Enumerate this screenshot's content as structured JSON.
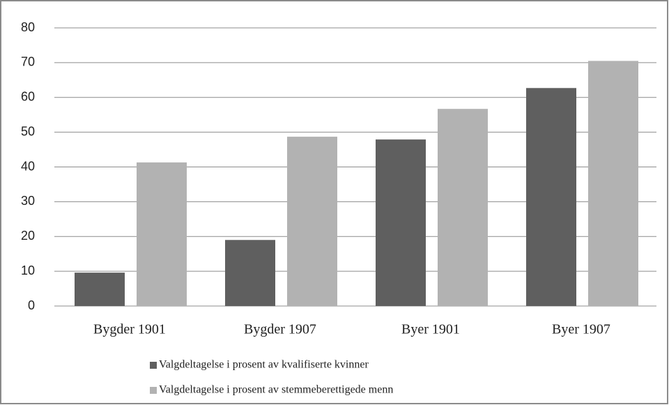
{
  "chart_data": {
    "type": "bar",
    "categories": [
      "Bygder 1901",
      "Bygder 1907",
      "Byer 1901",
      "Byer 1907"
    ],
    "series": [
      {
        "name": "Valgdeltagelse i prosent av kvalifiserte kvinner",
        "color": "#5f5f5f",
        "values": [
          9.6,
          19.0,
          47.9,
          62.7
        ]
      },
      {
        "name": "Valgdeltagelse i prosent av stemmeberettigede menn",
        "color": "#b2b2b2",
        "values": [
          41.3,
          48.7,
          56.7,
          70.5
        ]
      }
    ],
    "ylim": [
      0,
      80
    ],
    "yticks": [
      0,
      10,
      20,
      30,
      40,
      50,
      60,
      70,
      80
    ],
    "grid": true,
    "legend": "bottom"
  }
}
